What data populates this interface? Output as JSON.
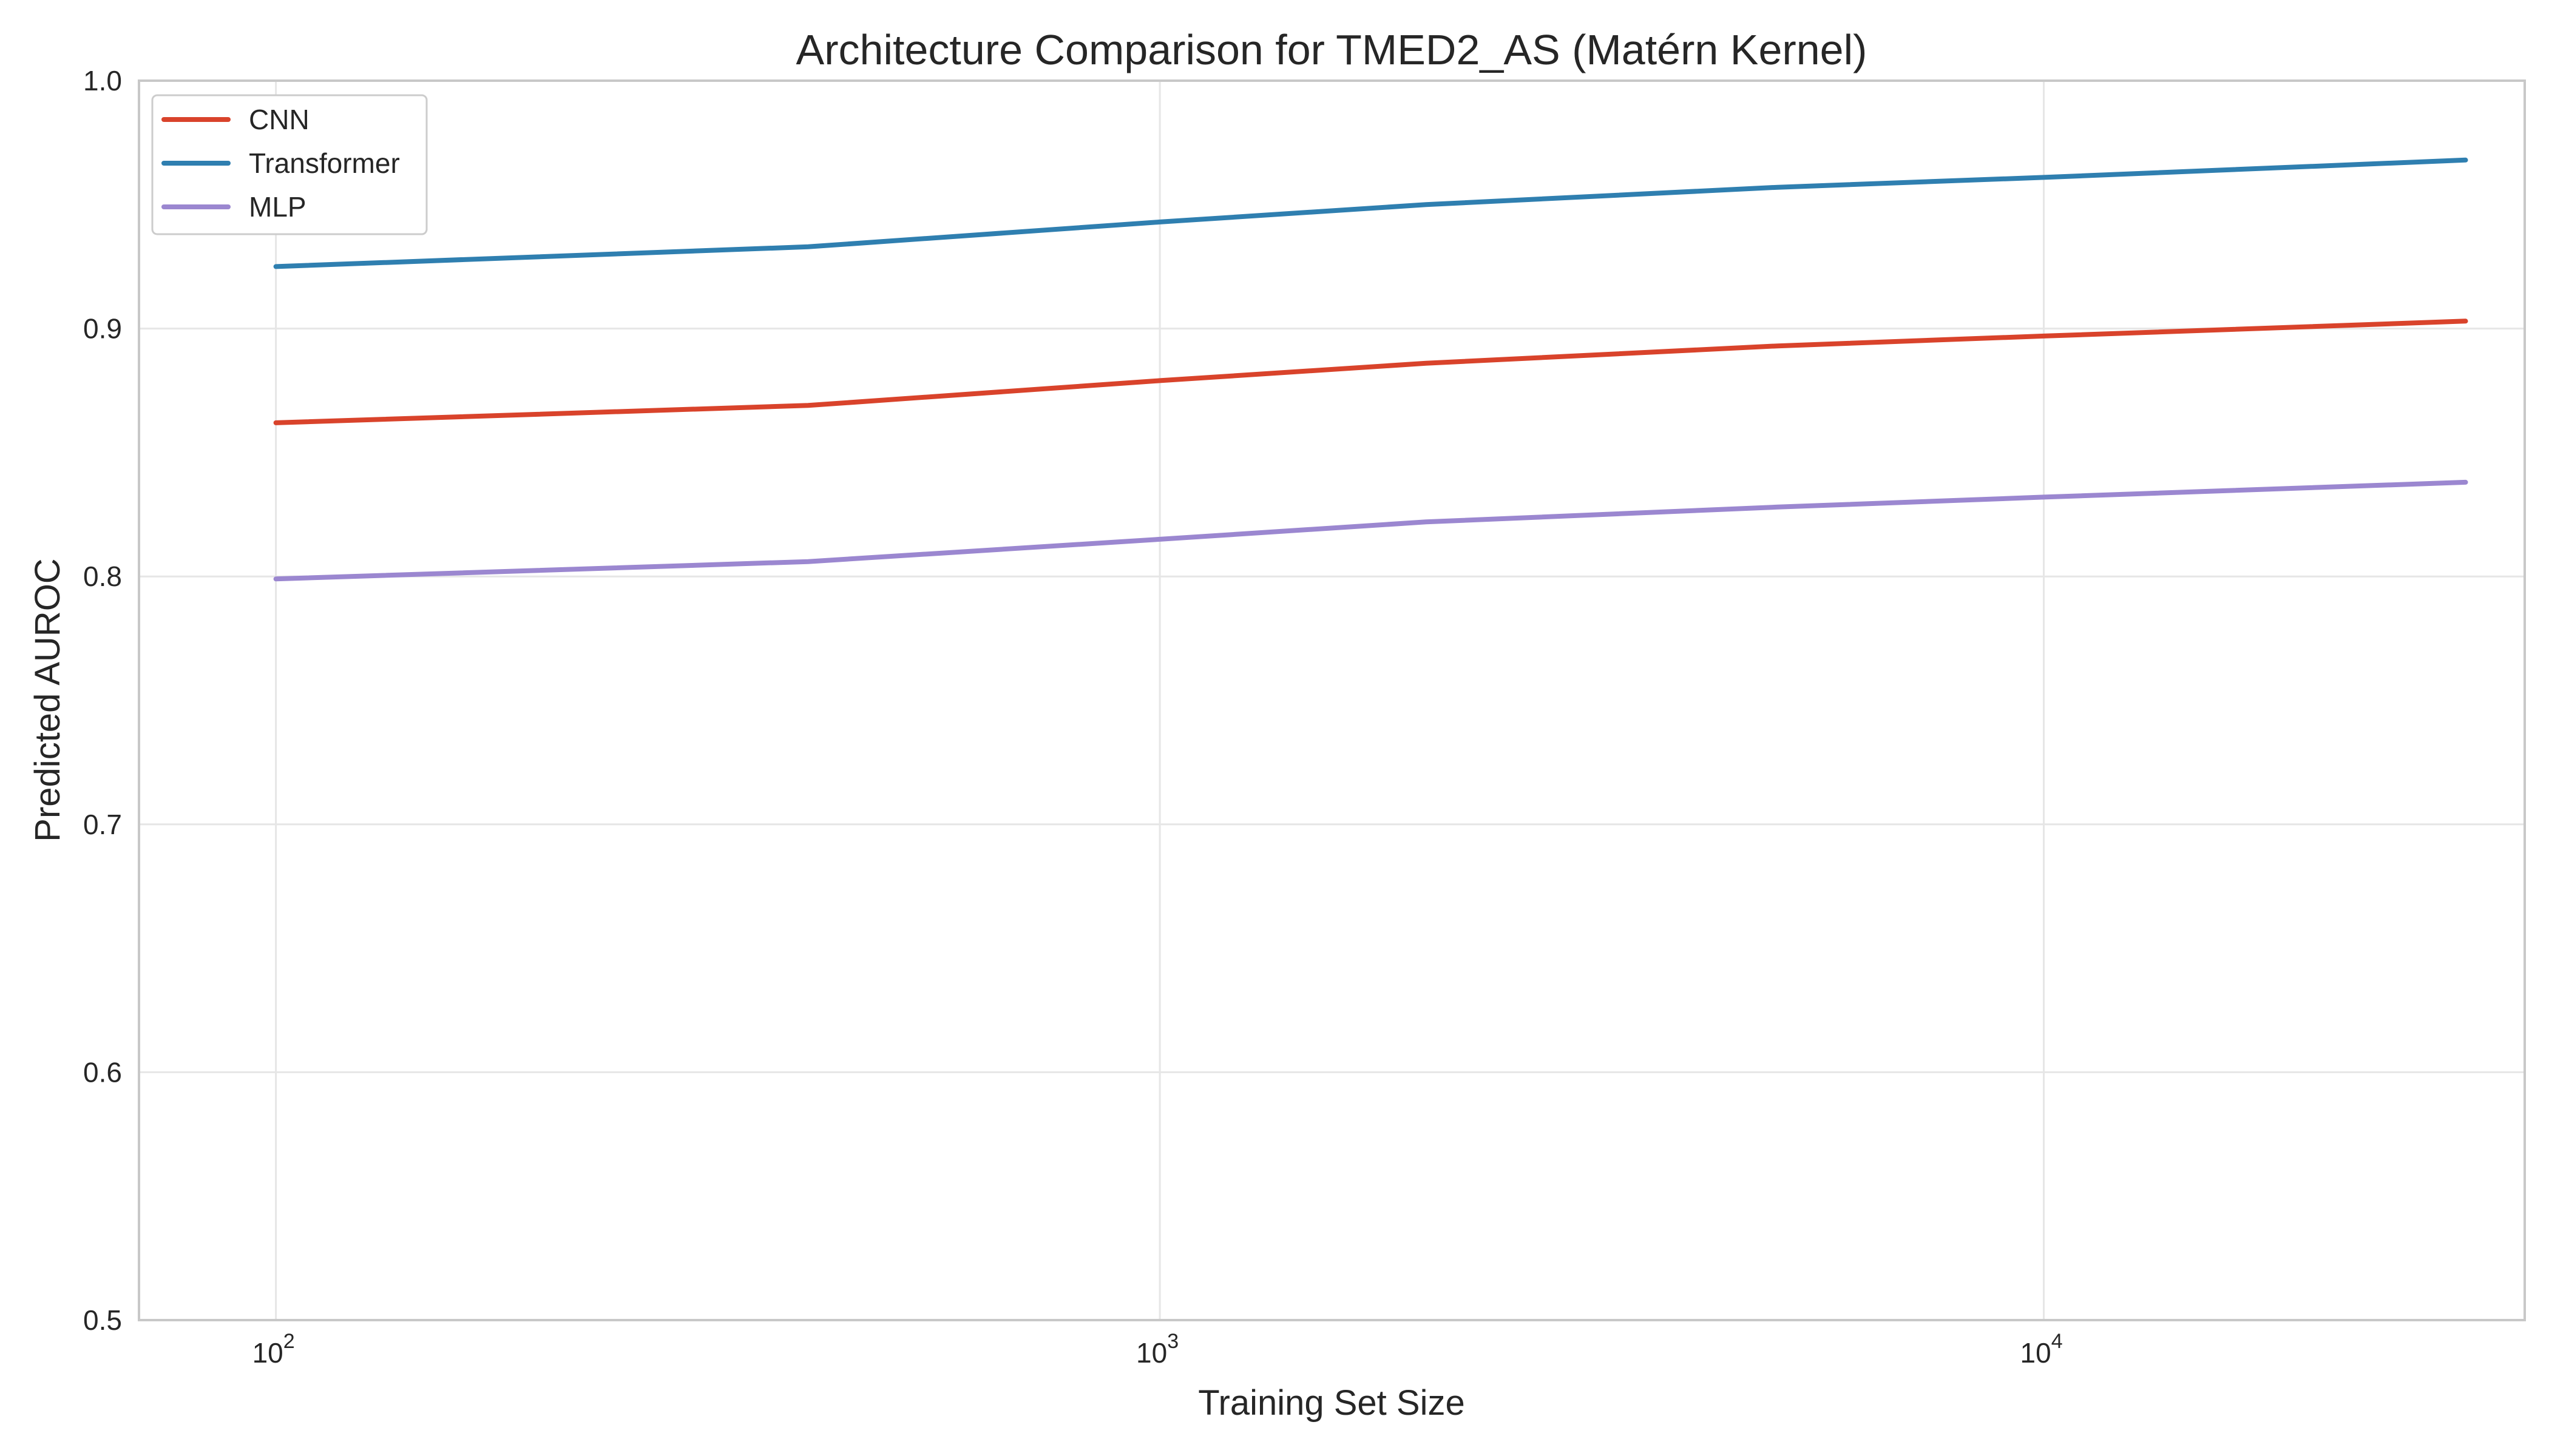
{
  "chart_data": {
    "type": "line",
    "title": "Architecture Comparison for TMED2_AS (Matérn Kernel)",
    "xlabel": "Training Set Size",
    "ylabel": "Predicted AUROC",
    "xscale": "log",
    "xlim": [
      70,
      35000
    ],
    "ylim": [
      0.5,
      1.0
    ],
    "grid": true,
    "legend_position": "top-left",
    "x_ticks": [
      {
        "value": 100,
        "base": "10",
        "exp": "2"
      },
      {
        "value": 1000,
        "base": "10",
        "exp": "3"
      },
      {
        "value": 10000,
        "base": "10",
        "exp": "4"
      }
    ],
    "y_ticks": [
      {
        "value": 0.5,
        "label": "0.5"
      },
      {
        "value": 0.6,
        "label": "0.6"
      },
      {
        "value": 0.7,
        "label": "0.7"
      },
      {
        "value": 0.8,
        "label": "0.8"
      },
      {
        "value": 0.9,
        "label": "0.9"
      },
      {
        "value": 1.0,
        "label": "1.0"
      }
    ],
    "x": [
      100,
      400,
      1000,
      2000,
      5000,
      10000,
      30000
    ],
    "series": [
      {
        "name": "CNN",
        "color": "#d9432b",
        "values": [
          0.862,
          0.869,
          0.879,
          0.886,
          0.893,
          0.897,
          0.903
        ]
      },
      {
        "name": "Transformer",
        "color": "#2f7fb0",
        "values": [
          0.925,
          0.933,
          0.943,
          0.95,
          0.957,
          0.961,
          0.968
        ]
      },
      {
        "name": "MLP",
        "color": "#9b87d0",
        "values": [
          0.799,
          0.806,
          0.815,
          0.822,
          0.828,
          0.832,
          0.838
        ]
      }
    ]
  }
}
